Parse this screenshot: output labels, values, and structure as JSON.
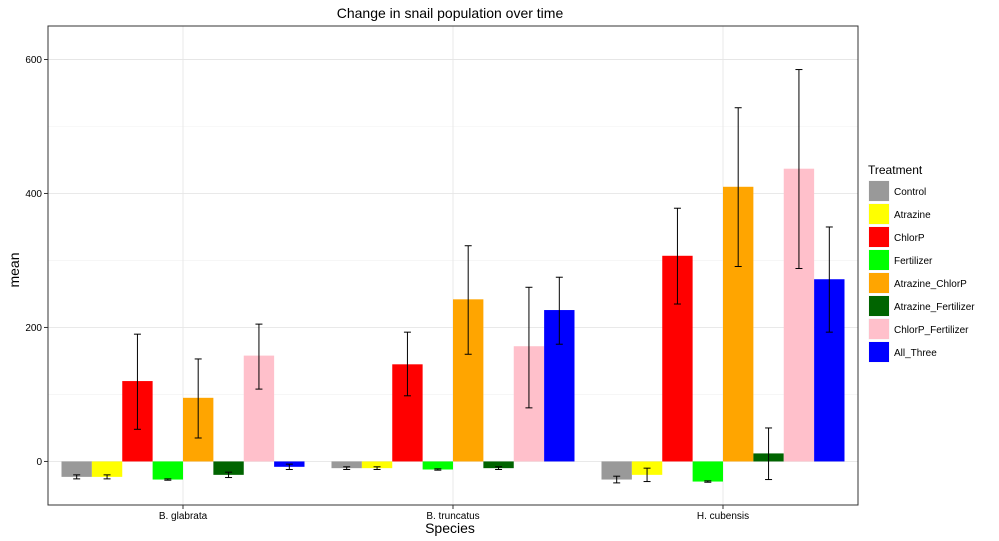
{
  "chart_data": {
    "type": "bar",
    "title": "Change in snail population over time",
    "xlabel": "Species",
    "ylabel": "mean",
    "categories": [
      "B. glabrata",
      "B. truncatus",
      "H. cubensis"
    ],
    "yticks": [
      0,
      200,
      400,
      600
    ],
    "ylim": [
      -65,
      650
    ],
    "grid": true,
    "legend": {
      "title": "Treatment",
      "position": "right"
    },
    "series": [
      {
        "name": "Control",
        "color": "#999999",
        "values": [
          -23,
          -10,
          -27
        ],
        "err_low": [
          -26,
          -12,
          -32
        ],
        "err_high": [
          -20,
          -8,
          -22
        ]
      },
      {
        "name": "Atrazine",
        "color": "#ffff00",
        "values": [
          -23,
          -10,
          -20
        ],
        "err_low": [
          -26,
          -12,
          -30
        ],
        "err_high": [
          -20,
          -8,
          -10
        ]
      },
      {
        "name": "ChlorP",
        "color": "#ff0000",
        "values": [
          120,
          145,
          307
        ],
        "err_low": [
          48,
          98,
          235
        ],
        "err_high": [
          190,
          193,
          378
        ]
      },
      {
        "name": "Fertilizer",
        "color": "#00ff00",
        "values": [
          -27,
          -12,
          -30
        ],
        "err_low": [
          -28,
          -13,
          -31
        ],
        "err_high": [
          -26,
          -11,
          -29
        ]
      },
      {
        "name": "Atrazine_ChlorP",
        "color": "#ffa500",
        "values": [
          95,
          242,
          410
        ],
        "err_low": [
          35,
          160,
          291
        ],
        "err_high": [
          153,
          322,
          528
        ]
      },
      {
        "name": "Atrazine_Fertilizer",
        "color": "#006400",
        "values": [
          -20,
          -10,
          12
        ],
        "err_low": [
          -24,
          -12,
          -27
        ],
        "err_high": [
          -16,
          -8,
          50
        ]
      },
      {
        "name": "ChlorP_Fertilizer",
        "color": "#ffc0cb",
        "values": [
          158,
          172,
          437
        ],
        "err_low": [
          108,
          80,
          288
        ],
        "err_high": [
          205,
          260,
          585
        ]
      },
      {
        "name": "All_Three",
        "color": "#0000ff",
        "values": [
          -8,
          226,
          272
        ],
        "err_low": [
          -12,
          175,
          193
        ],
        "err_high": [
          -4,
          275,
          350
        ]
      }
    ]
  }
}
